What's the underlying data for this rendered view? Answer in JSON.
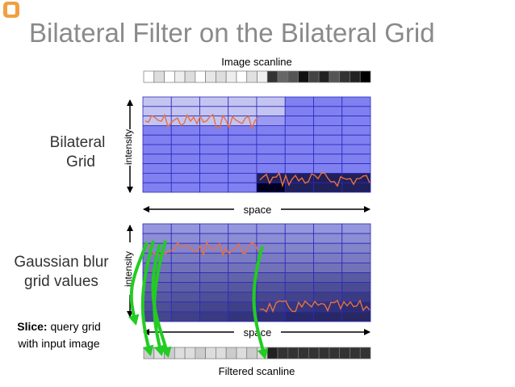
{
  "header": {
    "title": "Bilateral Filter on the Bilateral Grid"
  },
  "diagram": {
    "input_label": "Image scanline",
    "grid_label": [
      "Bilateral",
      "Grid"
    ],
    "intensity_label_top": "intensity",
    "space_label_top": "space",
    "blur_label": [
      "Gaussian blur",
      "grid values"
    ],
    "intensity_label_bottom": "intensity",
    "space_label_bottom": "space",
    "slice_label": {
      "bold": "Slice:",
      "rest": " query grid",
      "line2": "with input image"
    },
    "output_label": "Filtered scanline"
  }
}
